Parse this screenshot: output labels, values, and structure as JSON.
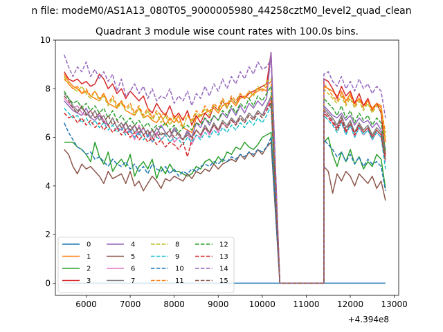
{
  "chart_data": {
    "type": "line",
    "suptitle": "n file: modeM0/AS1A13_080T05_9000005980_44258cztM0_level2_quad_clean",
    "title": "Quadrant 3 module wise count rates with 100.0s bins.",
    "xlabel": "",
    "ylabel": "",
    "x_offset_label": "+4.394e8",
    "xlim": [
      5300,
      13100
    ],
    "ylim": [
      -0.5,
      10
    ],
    "xticks": [
      6000,
      7000,
      8000,
      9000,
      10000,
      11000,
      12000,
      13000
    ],
    "xtick_labels": [
      "6000",
      "7000",
      "8000",
      "9000",
      "10000",
      "11000",
      "12000",
      "13000"
    ],
    "yticks": [
      0,
      2,
      4,
      6,
      8,
      10
    ],
    "ytick_labels": [
      "0",
      "2",
      "4",
      "6",
      "8",
      "10"
    ],
    "grid": false,
    "legend": {
      "placement": "lower-left",
      "columns": 4
    },
    "x_segment1": {
      "start": 5500,
      "step": 100,
      "count": 48
    },
    "x_gap": [
      10400,
      11400
    ],
    "x_segment2": {
      "start": 11400,
      "step": 100,
      "count": 15
    },
    "series": [
      {
        "name": "0",
        "color": "#1f77b4",
        "dash": "solid",
        "constant": 0
      },
      {
        "name": "1",
        "color": "#ff7f0e",
        "dash": "solid",
        "seg1": [
          8.6,
          8.3,
          8.1,
          8.0,
          7.8,
          7.9,
          7.7,
          7.6,
          7.5,
          7.8,
          7.4,
          7.3,
          7.2,
          7.5,
          7.1,
          7.0,
          6.9,
          7.2,
          6.8,
          6.9,
          6.7,
          6.6,
          6.9,
          6.5,
          6.8,
          6.6,
          6.9,
          6.4,
          6.3,
          6.2,
          6.8,
          6.9,
          7.0,
          7.1,
          7.2,
          7.0,
          7.3,
          7.4,
          7.5,
          7.3,
          7.6,
          7.7,
          7.6,
          7.8,
          7.9,
          8.0,
          7.9,
          9.4
        ],
        "seg2": [
          8.1,
          8.0,
          7.9,
          7.7,
          7.9,
          7.5,
          7.8,
          7.4,
          7.6,
          7.3,
          7.5,
          7.2,
          7.4,
          7.3,
          5.8
        ]
      },
      {
        "name": "2",
        "color": "#2ca02c",
        "dash": "solid",
        "seg1": [
          5.8,
          5.8,
          5.8,
          5.6,
          5.5,
          5.3,
          5.0,
          5.8,
          5.2,
          4.9,
          5.4,
          4.6,
          4.9,
          5.1,
          4.8,
          5.3,
          4.4,
          4.8,
          5.0,
          4.7,
          5.1,
          4.3,
          4.8,
          4.5,
          4.9,
          4.6,
          4.6,
          4.5,
          4.4,
          4.5,
          4.8,
          4.7,
          5.0,
          5.1,
          4.9,
          5.2,
          5.0,
          5.4,
          5.3,
          5.6,
          5.5,
          5.8,
          5.6,
          5.5,
          5.7,
          6.0,
          6.1,
          6.2
        ],
        "seg2": [
          5.8,
          6.0,
          5.3,
          4.8,
          5.4,
          5.0,
          5.5,
          4.9,
          5.2,
          4.7,
          5.0,
          4.8,
          5.3,
          5.1,
          3.9
        ]
      },
      {
        "name": "3",
        "color": "#d62728",
        "dash": "solid",
        "seg1": [
          8.7,
          8.4,
          8.3,
          8.4,
          8.2,
          8.3,
          8.1,
          8.2,
          8.6,
          8.4,
          8.0,
          8.2,
          7.8,
          8.0,
          7.6,
          7.9,
          7.7,
          7.5,
          7.7,
          7.2,
          7.0,
          7.4,
          7.1,
          6.9,
          7.3,
          6.8,
          7.0,
          6.7,
          7.1,
          6.5,
          6.9,
          6.6,
          7.0,
          6.8,
          7.3,
          7.1,
          7.5,
          7.2,
          7.6,
          7.4,
          7.7,
          7.6,
          7.8,
          7.9,
          8.0,
          8.1,
          8.2,
          9.5
        ],
        "seg2": [
          8.4,
          8.3,
          8.0,
          7.6,
          8.1,
          7.7,
          7.9,
          7.4,
          7.8,
          7.3,
          7.6,
          7.1,
          7.4,
          7.0,
          5.3
        ]
      },
      {
        "name": "4",
        "color": "#9467bd",
        "dash": "solid",
        "seg1": [
          7.5,
          7.3,
          7.1,
          7.0,
          6.9,
          7.2,
          6.8,
          6.7,
          6.9,
          6.6,
          6.5,
          6.8,
          6.4,
          6.3,
          6.6,
          6.2,
          6.5,
          6.1,
          6.4,
          6.0,
          6.3,
          6.1,
          6.5,
          6.2,
          6.0,
          6.4,
          6.1,
          5.9,
          6.3,
          6.0,
          6.6,
          6.4,
          6.8,
          6.5,
          6.9,
          6.7,
          7.0,
          6.8,
          7.2,
          6.9,
          7.3,
          7.0,
          7.4,
          7.2,
          7.5,
          7.3,
          7.6,
          9.5
        ],
        "seg2": [
          7.3,
          7.1,
          6.9,
          6.8,
          7.0,
          6.7,
          6.9,
          6.5,
          6.8,
          6.6,
          6.7,
          6.4,
          6.6,
          6.3,
          5.5
        ]
      },
      {
        "name": "5",
        "color": "#8c564b",
        "dash": "solid",
        "seg1": [
          5.5,
          5.3,
          4.8,
          4.5,
          4.9,
          4.7,
          4.8,
          4.6,
          4.4,
          4.1,
          4.6,
          4.3,
          4.4,
          4.5,
          4.1,
          4.6,
          4.0,
          4.2,
          3.8,
          4.1,
          4.4,
          4.2,
          3.9,
          4.3,
          4.2,
          4.4,
          4.3,
          4.2,
          4.5,
          4.3,
          4.6,
          4.5,
          4.7,
          4.6,
          4.9,
          4.7,
          4.9,
          5.0,
          5.1,
          5.0,
          5.3,
          5.1,
          5.4,
          5.2,
          5.5,
          5.3,
          5.6,
          5.8
        ],
        "seg2": [
          4.8,
          4.6,
          3.7,
          4.5,
          4.2,
          4.6,
          4.4,
          4.0,
          4.5,
          4.3,
          4.1,
          4.4,
          3.9,
          4.2,
          3.4
        ]
      },
      {
        "name": "6",
        "color": "#e377c2",
        "dash": "solid",
        "seg1": [
          7.6,
          7.4,
          7.2,
          7.3,
          7.0,
          6.9,
          7.1,
          6.8,
          7.0,
          6.7,
          6.5,
          6.8,
          6.4,
          6.6,
          6.2,
          6.3,
          5.9,
          6.5,
          6.1,
          6.3,
          5.8,
          6.2,
          5.9,
          6.1,
          6.3,
          5.8,
          6.0,
          5.9,
          6.2,
          5.7,
          6.1,
          6.0,
          6.4,
          6.1,
          6.5,
          6.2,
          6.6,
          6.4,
          6.8,
          6.5,
          6.9,
          6.7,
          7.0,
          6.8,
          7.1,
          6.9,
          7.2,
          7.6
        ],
        "seg2": [
          7.1,
          6.9,
          6.6,
          6.4,
          6.7,
          6.2,
          6.5,
          6.0,
          6.4,
          6.1,
          6.3,
          5.9,
          6.2,
          6.0,
          5.0
        ]
      },
      {
        "name": "7",
        "color": "#7f7f7f",
        "dash": "solid",
        "seg1": [
          7.8,
          7.6,
          7.3,
          7.1,
          7.2,
          7.0,
          6.8,
          7.1,
          6.7,
          6.9,
          6.5,
          6.8,
          6.4,
          6.6,
          6.3,
          6.5,
          6.2,
          6.4,
          6.1,
          6.3,
          6.0,
          6.4,
          6.1,
          6.2,
          6.0,
          6.3,
          6.1,
          5.9,
          6.2,
          6.0,
          6.3,
          6.1,
          6.5,
          6.2,
          6.6,
          6.3,
          6.7,
          6.5,
          6.8,
          6.6,
          6.9,
          6.7,
          7.0,
          6.8,
          7.1,
          6.9,
          7.3,
          7.7
        ],
        "seg2": [
          7.2,
          7.0,
          6.8,
          6.5,
          6.9,
          6.4,
          6.7,
          6.2,
          6.6,
          6.3,
          6.5,
          6.1,
          6.4,
          6.2,
          5.2
        ]
      },
      {
        "name": "8",
        "color": "#bcbd22",
        "dash": "dashed",
        "seg1": [
          8.5,
          8.2,
          8.0,
          7.9,
          8.1,
          7.8,
          7.6,
          7.9,
          7.5,
          7.7,
          7.3,
          7.6,
          7.2,
          7.4,
          7.1,
          7.3,
          6.9,
          7.2,
          6.8,
          7.1,
          6.7,
          7.0,
          6.6,
          6.9,
          6.5,
          6.8,
          6.6,
          6.4,
          6.9,
          6.6,
          7.0,
          6.8,
          7.2,
          6.9,
          7.3,
          7.1,
          7.5,
          7.2,
          7.6,
          7.4,
          7.8,
          7.6,
          7.9,
          7.7,
          8.1,
          7.9,
          8.3,
          8.4
        ],
        "seg2": [
          8.0,
          7.8,
          7.6,
          7.4,
          7.7,
          7.3,
          7.6,
          7.2,
          7.5,
          7.1,
          7.4,
          7.0,
          7.3,
          7.1,
          6.0
        ]
      },
      {
        "name": "9",
        "color": "#17becf",
        "dash": "dashed",
        "seg1": [
          7.2,
          7.0,
          6.8,
          6.9,
          6.6,
          6.8,
          6.5,
          6.7,
          6.4,
          6.6,
          6.3,
          6.5,
          6.2,
          6.4,
          6.1,
          6.3,
          6.0,
          6.2,
          5.9,
          6.1,
          5.8,
          6.0,
          5.9,
          6.1,
          5.8,
          6.0,
          5.9,
          5.7,
          6.0,
          5.8,
          6.1,
          5.9,
          6.2,
          6.0,
          6.3,
          6.1,
          6.4,
          6.2,
          6.5,
          6.3,
          6.6,
          6.4,
          6.7,
          6.5,
          6.8,
          6.6,
          6.9,
          7.3
        ],
        "seg2": [
          6.9,
          6.7,
          6.5,
          6.2,
          6.6,
          6.1,
          6.5,
          6.0,
          6.4,
          6.1,
          6.3,
          5.9,
          6.2,
          6.0,
          4.7
        ]
      },
      {
        "name": "10",
        "color": "#1f77b4",
        "dash": "dashed",
        "seg1": [
          6.6,
          6.2,
          5.9,
          5.6,
          5.5,
          5.3,
          5.4,
          5.1,
          5.2,
          5.0,
          4.8,
          5.1,
          4.9,
          4.8,
          5.0,
          4.7,
          4.9,
          4.6,
          4.8,
          4.5,
          4.9,
          4.7,
          4.6,
          4.8,
          4.5,
          4.7,
          4.4,
          4.6,
          4.5,
          4.7,
          4.6,
          4.8,
          4.9,
          4.8,
          5.0,
          4.9,
          5.1,
          5.0,
          5.2,
          5.1,
          5.3,
          5.2,
          5.4,
          5.3,
          5.5,
          5.4,
          5.6,
          6.0
        ],
        "seg2": [
          5.9,
          5.7,
          5.5,
          5.2,
          5.4,
          5.0,
          5.3,
          4.9,
          5.2,
          4.8,
          5.1,
          4.9,
          5.0,
          4.8,
          3.8
        ]
      },
      {
        "name": "11",
        "color": "#ff7f0e",
        "dash": "dashed",
        "seg1": [
          8.4,
          8.2,
          8.0,
          8.1,
          7.8,
          8.0,
          7.7,
          7.9,
          7.6,
          7.8,
          7.4,
          7.7,
          7.3,
          7.5,
          7.2,
          7.4,
          7.0,
          7.3,
          6.9,
          7.2,
          6.8,
          7.1,
          6.9,
          7.0,
          6.7,
          6.9,
          6.6,
          6.8,
          6.9,
          6.7,
          7.1,
          6.9,
          7.3,
          7.0,
          7.4,
          7.2,
          7.6,
          7.3,
          7.7,
          7.5,
          7.8,
          7.6,
          7.9,
          7.8,
          8.0,
          7.9,
          8.1,
          8.3
        ],
        "seg2": [
          8.2,
          8.0,
          7.7,
          7.5,
          7.8,
          7.4,
          7.7,
          7.3,
          7.6,
          7.2,
          7.5,
          7.1,
          7.4,
          7.2,
          6.2
        ]
      },
      {
        "name": "12",
        "color": "#2ca02c",
        "dash": "dashed",
        "seg1": [
          7.9,
          7.6,
          7.4,
          7.5,
          7.2,
          7.4,
          7.1,
          7.3,
          7.0,
          7.2,
          6.8,
          7.1,
          6.7,
          6.9,
          6.6,
          6.8,
          6.5,
          6.7,
          6.4,
          6.6,
          6.3,
          6.5,
          6.4,
          6.6,
          6.3,
          6.5,
          6.2,
          6.4,
          6.5,
          6.3,
          6.6,
          6.5,
          6.8,
          6.6,
          6.9,
          6.7,
          7.1,
          6.9,
          7.3,
          7.0,
          7.4,
          7.2,
          7.6,
          7.3,
          7.7,
          7.5,
          7.8,
          8.1
        ],
        "seg2": [
          7.6,
          7.4,
          7.2,
          6.9,
          7.3,
          6.8,
          7.1,
          6.6,
          7.0,
          6.7,
          6.9,
          6.5,
          6.8,
          6.6,
          5.4
        ]
      },
      {
        "name": "13",
        "color": "#d62728",
        "dash": "dashed",
        "seg1": [
          7.0,
          6.8,
          6.9,
          6.6,
          6.8,
          6.5,
          6.7,
          6.4,
          6.6,
          6.3,
          6.5,
          6.2,
          6.4,
          6.1,
          6.3,
          6.0,
          6.2,
          5.9,
          6.1,
          5.8,
          6.0,
          5.7,
          5.9,
          5.6,
          5.8,
          5.7,
          5.5,
          5.8,
          5.2,
          5.9,
          6.3,
          6.1,
          6.4,
          6.2,
          6.5,
          6.3,
          6.6,
          6.4,
          6.7,
          6.5,
          6.8,
          6.6,
          6.9,
          6.7,
          7.0,
          6.8,
          7.1,
          7.5
        ],
        "seg2": [
          7.0,
          6.8,
          6.6,
          6.3,
          6.7,
          6.2,
          6.6,
          6.1,
          6.5,
          6.2,
          6.4,
          6.0,
          6.3,
          6.1,
          5.1
        ]
      },
      {
        "name": "14",
        "color": "#9467bd",
        "dash": "dashed",
        "seg1": [
          9.4,
          8.9,
          8.5,
          8.9,
          8.7,
          9.1,
          8.5,
          8.8,
          8.4,
          8.7,
          8.3,
          8.6,
          7.9,
          8.4,
          7.7,
          7.9,
          8.2,
          7.8,
          8.1,
          7.6,
          8.0,
          7.5,
          7.7,
          7.6,
          8.0,
          7.4,
          7.7,
          7.5,
          7.9,
          7.3,
          7.8,
          7.6,
          8.1,
          7.7,
          8.2,
          7.9,
          8.4,
          8.0,
          8.5,
          8.2,
          8.7,
          8.4,
          8.9,
          8.6,
          9.1,
          8.8,
          8.9,
          9.2
        ],
        "seg2": [
          8.6,
          8.7,
          8.3,
          8.1,
          8.5,
          8.0,
          8.3,
          7.9,
          8.4,
          8.0,
          8.2,
          7.8,
          8.1,
          7.9,
          6.8
        ]
      },
      {
        "name": "15",
        "color": "#8c564b",
        "dash": "dashed",
        "seg1": [
          7.7,
          7.5,
          7.2,
          7.0,
          7.3,
          6.9,
          7.1,
          6.8,
          7.0,
          6.6,
          6.9,
          6.5,
          6.7,
          6.4,
          6.6,
          6.3,
          6.5,
          6.2,
          6.4,
          6.1,
          6.3,
          6.0,
          6.2,
          6.1,
          6.3,
          6.0,
          6.2,
          5.9,
          6.1,
          6.0,
          6.3,
          6.1,
          6.4,
          6.2,
          6.5,
          6.3,
          6.6,
          6.4,
          6.7,
          6.5,
          6.8,
          6.6,
          6.9,
          6.7,
          7.0,
          6.8,
          7.1,
          7.4
        ],
        "seg2": [
          7.1,
          6.9,
          6.7,
          6.4,
          6.8,
          6.3,
          6.6,
          6.2,
          6.5,
          6.2,
          6.4,
          6.0,
          6.3,
          6.1,
          5.0
        ]
      }
    ]
  }
}
